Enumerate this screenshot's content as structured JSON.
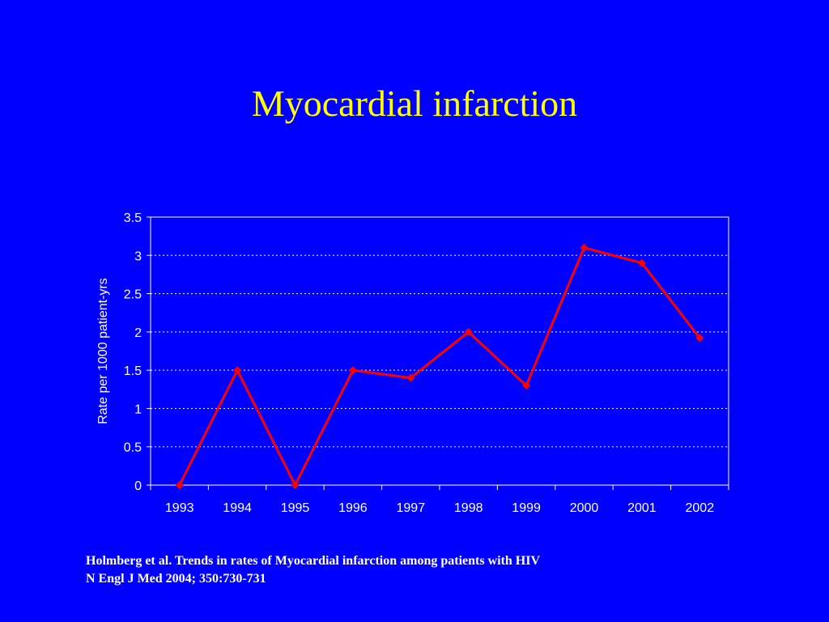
{
  "slide": {
    "title": "Myocardial infarction",
    "citation_line1": "Holmberg et al. Trends in rates of Myocardial infarction among patients with HIV",
    "citation_line2": "N Engl J Med 2004; 350:730-731"
  },
  "colors": {
    "background": "#0000ff",
    "title": "#ffff00",
    "series": "#ff0000",
    "text": "#ffffff"
  },
  "chart_data": {
    "type": "line",
    "title": "",
    "xlabel": "",
    "ylabel": "Rate per 1000 patient-yrs",
    "categories": [
      "1993",
      "1994",
      "1995",
      "1996",
      "1997",
      "1998",
      "1999",
      "2000",
      "2001",
      "2002"
    ],
    "series": [
      {
        "values": [
          0,
          1.5,
          0,
          1.5,
          1.4,
          2.0,
          1.3,
          3.1,
          2.9,
          1.92
        ],
        "marker": "diamond",
        "color": "#ff0000"
      }
    ],
    "ylim": [
      0,
      3.5
    ],
    "yticks": [
      0,
      0.5,
      1,
      1.5,
      2,
      2.5,
      3,
      3.5
    ],
    "ytick_labels": [
      "0",
      "0.5",
      "1",
      "1.5",
      "2",
      "2.5",
      "3",
      "3.5"
    ],
    "grid": "horizontal-dotted",
    "legend": "none"
  }
}
